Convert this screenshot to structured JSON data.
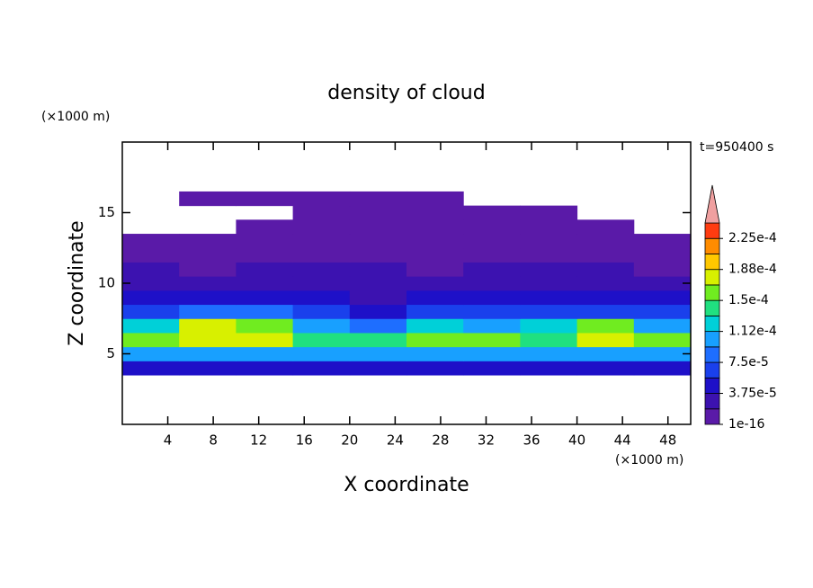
{
  "chart_data": {
    "type": "contour",
    "title": "density of cloud",
    "annotation": "t=950400 s",
    "xlabel": "X coordinate",
    "ylabel": "Z coordinate",
    "xunit": "(×1000 m)",
    "yunit": "(×1000 m)",
    "xlim": [
      0,
      50
    ],
    "ylim": [
      0,
      20
    ],
    "xticks": [
      4,
      8,
      12,
      16,
      20,
      24,
      28,
      32,
      36,
      40,
      44,
      48
    ],
    "yticks": [
      5,
      10,
      15
    ],
    "x_edges": [
      0,
      5,
      10,
      15,
      20,
      25,
      30,
      35,
      40,
      45,
      50
    ],
    "z_edges": [
      3.5,
      4.5,
      5.5,
      6.5,
      7.5,
      8.5,
      9.5,
      10.5,
      11.5,
      12.5,
      13.5,
      14.5,
      15.5,
      16.5
    ],
    "values": [
      [
        5e-05,
        5.5e-05,
        5.5e-05,
        4.5e-05,
        5e-05,
        5.5e-05,
        5e-05,
        5.5e-05,
        5e-05,
        5e-05
      ],
      [
        0.000105,
        0.00011,
        0.000105,
        9.5e-05,
        0.0001,
        0.000105,
        0.000105,
        0.00011,
        0.0001,
        0.000105
      ],
      [
        0.000155,
        0.00018,
        0.00017,
        0.000145,
        0.00014,
        0.000155,
        0.00015,
        0.000145,
        0.000175,
        0.00015
      ],
      [
        0.00013,
        0.000175,
        0.00016,
        0.0001,
        9e-05,
        0.00012,
        0.000105,
        0.000115,
        0.000155,
        0.00011
      ],
      [
        7e-05,
        8.5e-05,
        8e-05,
        6.5e-05,
        5.5e-05,
        6e-05,
        6e-05,
        6e-05,
        7e-05,
        6.5e-05
      ],
      [
        4.5e-05,
        5e-05,
        5e-05,
        4.5e-05,
        3.5e-05,
        4e-05,
        4e-05,
        4e-05,
        4.5e-05,
        4e-05
      ],
      [
        3e-05,
        2.5e-05,
        3e-05,
        3.5e-05,
        2.5e-05,
        2.5e-05,
        3e-05,
        3e-05,
        3e-05,
        3e-05
      ],
      [
        2e-05,
        1.5e-05,
        2e-05,
        2.5e-05,
        2e-05,
        1.5e-05,
        2e-05,
        2e-05,
        2e-05,
        1.5e-05
      ],
      [
        1e-05,
        5e-06,
        1e-05,
        1e-05,
        1e-05,
        5e-06,
        5e-06,
        5e-06,
        1e-05,
        5e-06
      ],
      [
        5e-06,
        5e-06,
        5e-06,
        5e-06,
        5e-06,
        5e-06,
        5e-06,
        5e-06,
        5e-06,
        5e-06
      ],
      [
        null,
        null,
        5e-06,
        5e-06,
        5e-06,
        5e-06,
        5e-06,
        5e-06,
        5e-06,
        null
      ],
      [
        null,
        null,
        null,
        5e-06,
        5e-06,
        5e-06,
        5e-06,
        5e-06,
        null,
        null
      ],
      [
        null,
        5e-06,
        5e-06,
        5e-06,
        5e-06,
        5e-06,
        null,
        null,
        null,
        null
      ]
    ],
    "levels": [
      1e-16,
      1.875e-05,
      3.75e-05,
      5.625e-05,
      7.5e-05,
      9.375e-05,
      0.0001125,
      0.00013125,
      0.00015,
      0.00016875,
      0.0001875,
      0.00020625,
      0.000225,
      0.00024375
    ],
    "colors": [
      "#5a1aa8",
      "#3c12b0",
      "#1e10c8",
      "#1a40ec",
      "#1e6eff",
      "#18a0ff",
      "#00d0d8",
      "#20e080",
      "#70ec20",
      "#d8f000",
      "#ffc800",
      "#ff8c00",
      "#ff3c10"
    ],
    "extend_color": "#f0a0a0",
    "cticks": [
      {
        "value": 1e-16,
        "label": "1e-16"
      },
      {
        "value": 3.75e-05,
        "label": "3.75e-5"
      },
      {
        "value": 7.5e-05,
        "label": "7.5e-5"
      },
      {
        "value": 0.0001125,
        "label": "1.12e-4"
      },
      {
        "value": 0.00015,
        "label": "1.5e-4"
      },
      {
        "value": 0.0001875,
        "label": "1.88e-4"
      },
      {
        "value": 0.000225,
        "label": "2.25e-4"
      }
    ]
  }
}
